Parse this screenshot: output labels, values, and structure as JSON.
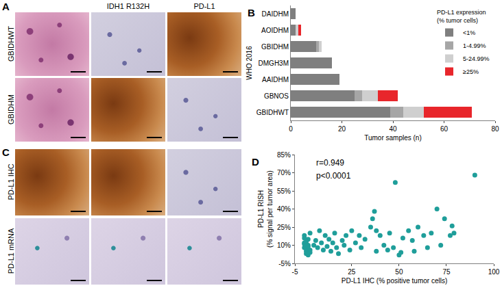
{
  "images": {
    "panel_A": {
      "letter": "A",
      "row_labels": [
        "GBIDHWT",
        "GBIDHM"
      ],
      "column_headers": [
        "IDH1 R132H",
        "PD-L1"
      ]
    },
    "panel_C": {
      "letter": "C",
      "row_labels": [
        "PD-L1 IHC",
        "PD-L1 mRNA"
      ]
    }
  },
  "chart_data": [
    {
      "panel": "B",
      "type": "bar",
      "orientation": "horizontal",
      "stacked": true,
      "y_label": "WHO 2016",
      "x_label": "Tumor samples (n)",
      "categories": [
        "GBIDHWT",
        "GBNOS",
        "AAIDHM",
        "DMGH3M",
        "GBIDHM",
        "AOIDHM",
        "DAIDHM"
      ],
      "series": [
        {
          "name": "<1%",
          "color": "#7f7f7f",
          "values": [
            39,
            25,
            19,
            16,
            10,
            2,
            2
          ]
        },
        {
          "name": "1-4.99%",
          "color": "#a6a6a6",
          "values": [
            5,
            3,
            0,
            0,
            1,
            0,
            0
          ]
        },
        {
          "name": "5-24.99%",
          "color": "#cfcfcf",
          "values": [
            8,
            6,
            0,
            0,
            1,
            1,
            0
          ]
        },
        {
          "name": "≥25%",
          "color": "#e8262b",
          "values": [
            19,
            8,
            0,
            0,
            0,
            1,
            0
          ]
        }
      ],
      "legend_title": [
        "PD-L1 expression",
        "(% tumor cells)"
      ],
      "legend": "top right",
      "xlim": [
        0,
        80
      ],
      "xticks": [
        0,
        20,
        40,
        60,
        80
      ],
      "grid": false
    },
    {
      "panel": "D",
      "type": "scatter",
      "marker": "circle",
      "color": "#1f9e9a",
      "x_label": "PD-L1 IHC (% positive tumor cells)",
      "y_label": [
        "PD-L1 RISH",
        "(% signal per tumor area)"
      ],
      "annotations": [
        "r=0.949",
        "p<0.0001"
      ],
      "x": [
        0,
        0,
        1,
        1,
        2,
        2,
        0,
        1,
        3,
        2,
        0,
        3,
        1,
        2,
        3,
        0,
        5,
        6,
        7,
        8,
        9,
        10,
        11,
        12,
        13,
        14,
        15,
        16,
        17,
        18,
        20,
        21,
        22,
        24,
        25,
        27,
        29,
        30,
        32,
        35,
        36,
        37,
        38,
        38,
        40,
        42,
        44,
        45,
        47,
        48,
        50,
        51,
        52,
        55,
        57,
        58,
        60,
        63,
        65,
        67,
        70,
        72,
        74,
        77,
        78,
        79,
        90
      ],
      "values": [
        12,
        8,
        5,
        3,
        10,
        15,
        18,
        7,
        6,
        9,
        11,
        4,
        13,
        2,
        20,
        16,
        10,
        14,
        8,
        22,
        12,
        6,
        18,
        9,
        15,
        5,
        12,
        20,
        8,
        3,
        14,
        10,
        18,
        6,
        22,
        12,
        18,
        8,
        15,
        25,
        32,
        38,
        22,
        5,
        18,
        10,
        6,
        20,
        8,
        62,
        2,
        4,
        16,
        22,
        14,
        5,
        25,
        18,
        8,
        20,
        40,
        10,
        32,
        18,
        26,
        20,
        68
      ],
      "xlim": [
        -5,
        100
      ],
      "xticks": [
        -5,
        25,
        50,
        75,
        100
      ],
      "ylim": [
        -5,
        85
      ],
      "yticks": [
        {
          "value": -5,
          "label": "-5%"
        },
        {
          "value": 10,
          "label": "10%"
        },
        {
          "value": 25,
          "label": "25%"
        },
        {
          "value": 40,
          "label": "40%"
        },
        {
          "value": 55,
          "label": "55%"
        },
        {
          "value": 70,
          "label": "70%"
        },
        {
          "value": 85,
          "label": "85%"
        }
      ],
      "grid": false
    }
  ]
}
